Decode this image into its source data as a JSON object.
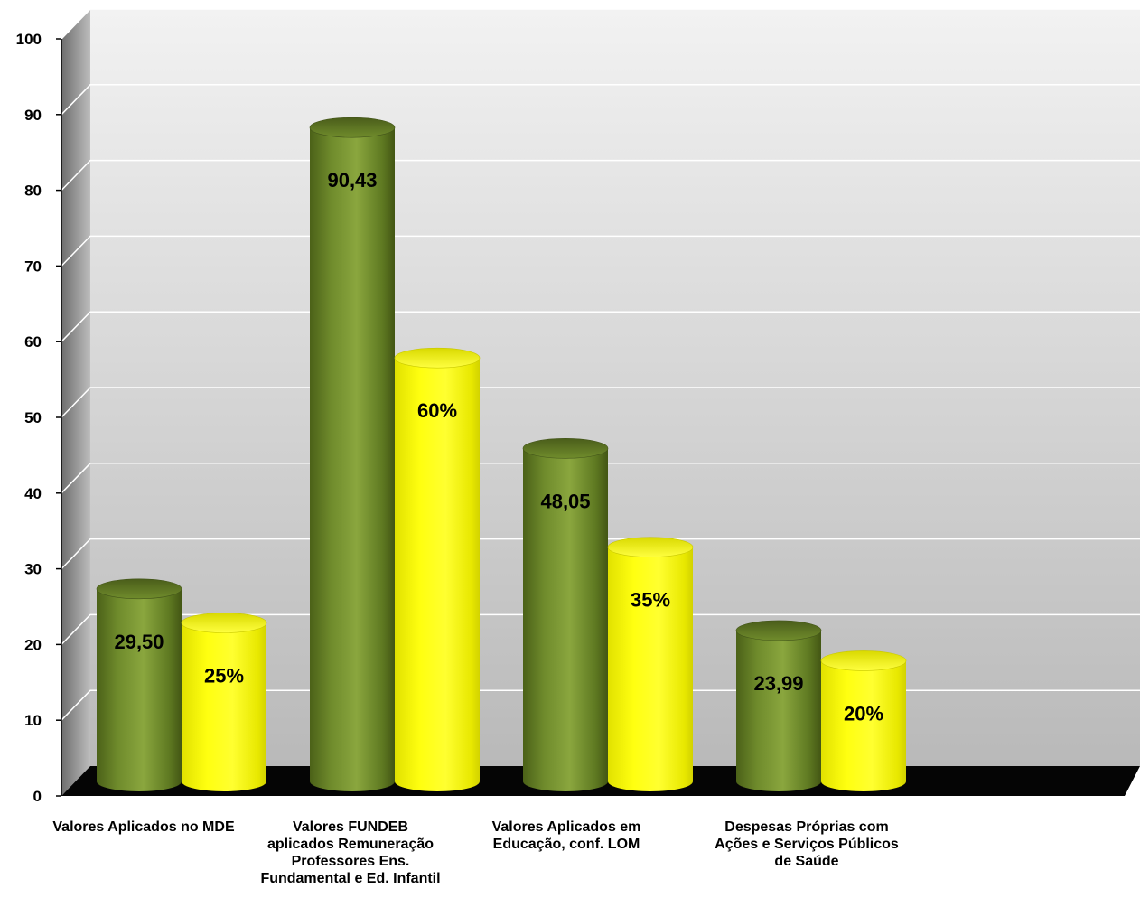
{
  "chart_data": {
    "type": "bar",
    "title": "",
    "xlabel": "",
    "ylabel": "",
    "ylim": [
      0,
      100
    ],
    "yticks": [
      0,
      10,
      20,
      30,
      40,
      50,
      60,
      70,
      80,
      90,
      100
    ],
    "grid": true,
    "legend": "none",
    "categories": [
      [
        "Valores Aplicados no MDE"
      ],
      [
        "Valores FUNDEB",
        "aplicados Remuneração",
        "Professores Ens.",
        "Fundamental e Ed. Infantil"
      ],
      [
        "Valores Aplicados em",
        "Educação, conf. LOM"
      ],
      [
        "Despesas Próprias com",
        "Ações e Serviços Públicos",
        "de Saúde"
      ]
    ],
    "series": [
      {
        "values": [
          29.5,
          90.43,
          48.05,
          23.99
        ],
        "labels": [
          "29,50",
          "90,43",
          "48,05",
          "23,99"
        ],
        "color": "#6e8a2c"
      },
      {
        "values": [
          25,
          60,
          35,
          20
        ],
        "labels": [
          "25%",
          "60%",
          "35%",
          "20%"
        ],
        "color": "#f2f200"
      }
    ]
  }
}
